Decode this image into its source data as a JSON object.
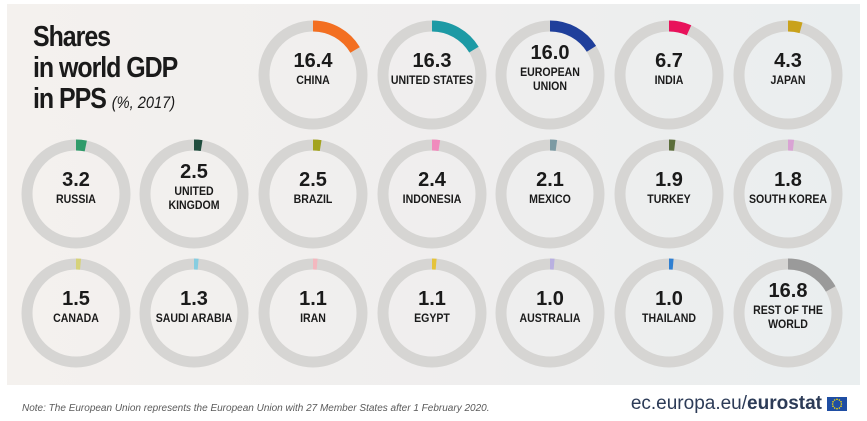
{
  "header": {
    "title_lines": [
      "Shares",
      "in world GDP",
      "in PPS"
    ],
    "subtitle": "(%, 2017)"
  },
  "chart_data": {
    "type": "pie",
    "title": "Shares in world GDP in PPS (%, 2017)",
    "unit": "%",
    "value_max": 100,
    "ring_color": "#d6d5d3",
    "items": [
      {
        "label": "CHINA",
        "value": 16.4,
        "display": "16.4",
        "color": "#f36f21"
      },
      {
        "label": "UNITED STATES",
        "value": 16.3,
        "display": "16.3",
        "color": "#1d9aa5"
      },
      {
        "label": "EUROPEAN UNION",
        "value": 16.0,
        "display": "16.0",
        "color": "#1f3f9b"
      },
      {
        "label": "INDIA",
        "value": 6.7,
        "display": "6.7",
        "color": "#e8125b"
      },
      {
        "label": "JAPAN",
        "value": 4.3,
        "display": "4.3",
        "color": "#c9a21b"
      },
      {
        "label": "RUSSIA",
        "value": 3.2,
        "display": "3.2",
        "color": "#2f9b6a"
      },
      {
        "label": "UNITED KINGDOM",
        "value": 2.5,
        "display": "2.5",
        "color": "#1f4c3d"
      },
      {
        "label": "BRAZIL",
        "value": 2.5,
        "display": "2.5",
        "color": "#a3a31e"
      },
      {
        "label": "INDONESIA",
        "value": 2.4,
        "display": "2.4",
        "color": "#f08bbd"
      },
      {
        "label": "MEXICO",
        "value": 2.1,
        "display": "2.1",
        "color": "#7c9aa3"
      },
      {
        "label": "TURKEY",
        "value": 1.9,
        "display": "1.9",
        "color": "#5b6d3a"
      },
      {
        "label": "SOUTH KOREA",
        "value": 1.8,
        "display": "1.8",
        "color": "#d9a3d4"
      },
      {
        "label": "CANADA",
        "value": 1.5,
        "display": "1.5",
        "color": "#d6d27a"
      },
      {
        "label": "SAUDI ARABIA",
        "value": 1.3,
        "display": "1.3",
        "color": "#86cde0"
      },
      {
        "label": "IRAN",
        "value": 1.1,
        "display": "1.1",
        "color": "#f3b8bf"
      },
      {
        "label": "EGYPT",
        "value": 1.1,
        "display": "1.1",
        "color": "#e5c33a"
      },
      {
        "label": "AUSTRALIA",
        "value": 1.0,
        "display": "1.0",
        "color": "#b9b0e0"
      },
      {
        "label": "THAILAND",
        "value": 1.0,
        "display": "1.0",
        "color": "#2f7fd1"
      },
      {
        "label": "REST OF THE WORLD",
        "value": 16.8,
        "display": "16.8",
        "color": "#9a9a9a"
      }
    ]
  },
  "footer": {
    "note": "Note: The European Union represents the European Union with 27 Member States after 1 February 2020.",
    "brand_domain": "ec.europa.eu/",
    "brand_name": "eurostat"
  }
}
